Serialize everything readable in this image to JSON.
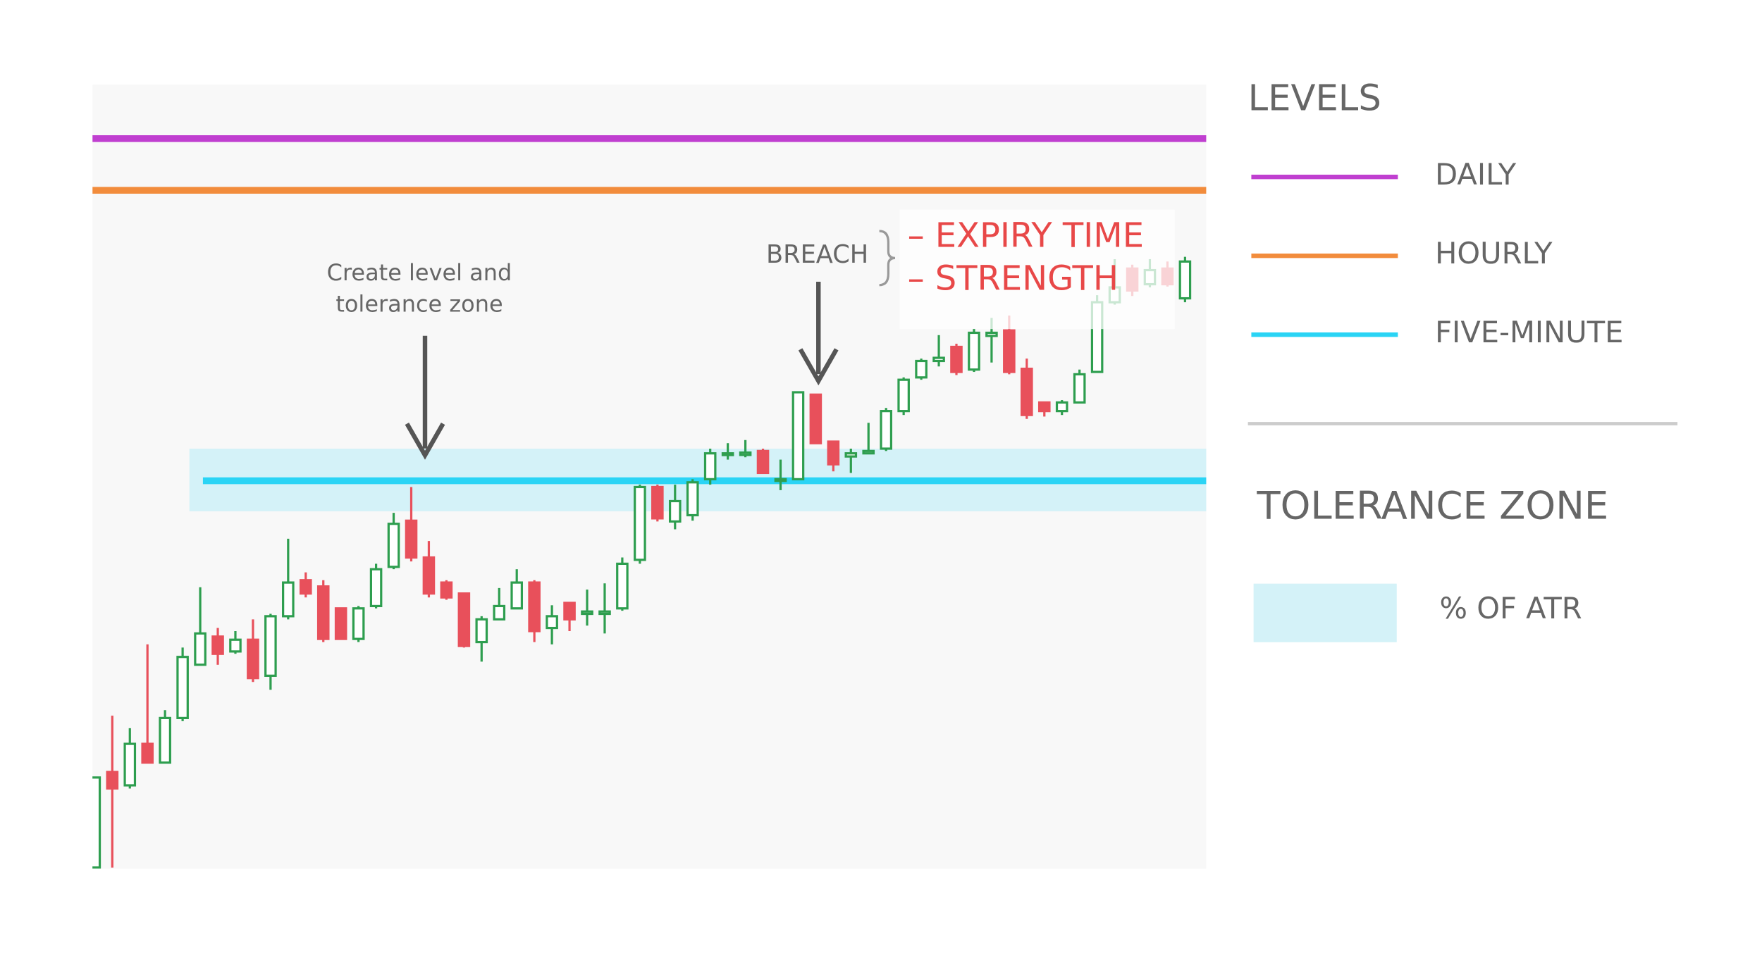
{
  "chart_data": {
    "type": "candlestick",
    "ylim": [
      0,
      100
    ],
    "open": [
      0,
      12.2,
      10.5,
      15.8,
      13.4,
      19.1,
      25.9,
      29.5,
      27.6,
      29.1,
      24.5,
      32.1,
      36.7,
      35.9,
      33.1,
      29.2,
      33.4,
      38.4,
      44.3,
      39.6,
      36.4,
      35.0,
      28.8,
      31.7,
      33.1,
      36.4,
      30.6,
      33.8,
      32.4,
      32.4,
      33.1,
      39.3,
      48.6,
      44.2,
      45.0,
      49.6,
      52.7,
      52.7,
      53.2,
      49.6,
      49.6,
      60.4,
      54.4,
      52.5,
      52.9,
      53.5,
      58.3,
      62.6,
      64.7,
      66.5,
      63.6,
      67.9,
      68.6,
      63.7,
      59.4,
      58.3,
      59.4,
      63.3,
      72.2,
      76.5,
      74.5,
      76.5,
      72.7
    ],
    "high": [
      11.5,
      19.4,
      17.8,
      28.5,
      20.1,
      28.1,
      35.8,
      30.6,
      30.2,
      31.7,
      32.4,
      42.0,
      37.7,
      36.7,
      33.1,
      33.4,
      38.8,
      45.3,
      48.6,
      41.7,
      36.7,
      35.0,
      32.1,
      35.7,
      38.1,
      36.7,
      33.5,
      33.8,
      35.5,
      36.3,
      39.6,
      48.9,
      48.9,
      48.9,
      49.6,
      53.5,
      54.2,
      54.6,
      53.5,
      52.1,
      60.7,
      60.4,
      54.4,
      53.5,
      56.8,
      58.7,
      62.6,
      65.0,
      68.0,
      66.9,
      68.8,
      70.2,
      70.5,
      65.0,
      59.4,
      59.7,
      63.6,
      73.1,
      77.7,
      77.0,
      77.7,
      77.4,
      78.0
    ],
    "low": [
      0,
      0,
      10.1,
      13.4,
      13.4,
      18.7,
      25.9,
      25.9,
      27.3,
      23.7,
      22.7,
      31.7,
      34.5,
      28.8,
      29.2,
      28.8,
      33.1,
      38.1,
      39.1,
      34.5,
      34.2,
      28.1,
      26.3,
      31.7,
      33.1,
      28.8,
      28.5,
      30.2,
      30.9,
      29.9,
      32.8,
      38.8,
      44.2,
      43.2,
      44.3,
      48.9,
      52.1,
      52.4,
      50.4,
      48.2,
      49.6,
      54.2,
      50.6,
      50.4,
      52.9,
      53.2,
      57.8,
      62.3,
      64.0,
      62.9,
      63.3,
      64.5,
      63.0,
      57.3,
      57.6,
      57.8,
      59.3,
      63.3,
      71.9,
      73.0,
      74.1,
      74.2,
      72.2
    ],
    "close": [
      11.5,
      10.1,
      15.8,
      13.4,
      19.1,
      26.9,
      29.9,
      27.3,
      29.1,
      24.2,
      32.1,
      36.4,
      35.0,
      29.2,
      29.2,
      33.1,
      38.1,
      43.9,
      39.6,
      35.0,
      34.5,
      28.3,
      31.7,
      33.4,
      36.4,
      30.2,
      32.1,
      31.7,
      32.7,
      32.7,
      38.8,
      48.6,
      44.6,
      46.8,
      49.2,
      52.9,
      52.9,
      53.0,
      50.4,
      49.6,
      60.7,
      54.2,
      51.5,
      52.9,
      53.2,
      58.3,
      62.3,
      64.7,
      65.1,
      63.3,
      68.3,
      68.3,
      63.3,
      57.8,
      58.3,
      59.4,
      63.0,
      72.2,
      74.1,
      73.7,
      76.3,
      74.5,
      77.4
    ],
    "up_color": "#2e9e4f",
    "down_color": "#e8505b",
    "levels_title": "LEVELS",
    "levels": [
      {
        "name": "DAILY",
        "value": 93.1,
        "color": "#c03fd0"
      },
      {
        "name": "HOURLY",
        "value": 86.5,
        "color": "#f28c3c"
      },
      {
        "name": "FIVE-MINUTE",
        "value": 49.4,
        "color": "#2ad4f5"
      }
    ],
    "tolerance_zone": {
      "title": "TOLERANCE ZONE",
      "label": "% OF ATR",
      "range": [
        45.5,
        53.5
      ],
      "color": "#d4f2f8"
    },
    "annotations": {
      "create": [
        "Create level and",
        "tolerance zone"
      ],
      "breach": "BREACH",
      "breach_notes": [
        "– EXPIRY TIME",
        "– STRENGTH"
      ]
    }
  }
}
